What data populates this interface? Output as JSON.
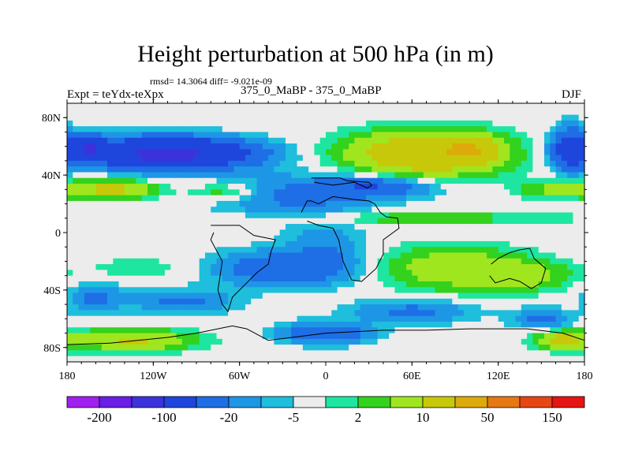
{
  "title": "Height perturbation at 500 hPa (in m)",
  "stats_text": "rmsd= 14.3064 diff= -9.021e-09",
  "left_label": "Expt = teYdx-teXpx",
  "center_label": "375_0_MaBP - 375_0_MaBP",
  "right_label": "DJF",
  "chart_data": {
    "type": "heatmap",
    "title": "Height perturbation at 500 hPa (in m)",
    "xlim": [
      -180,
      180
    ],
    "ylim": [
      -90,
      90
    ],
    "x_ticks": [
      {
        "value": -180,
        "label": "180"
      },
      {
        "value": -120,
        "label": "120W"
      },
      {
        "value": -60,
        "label": "60W"
      },
      {
        "value": 0,
        "label": "0"
      },
      {
        "value": 60,
        "label": "60E"
      },
      {
        "value": 120,
        "label": "120E"
      },
      {
        "value": 180,
        "label": "180"
      }
    ],
    "y_ticks": [
      {
        "value": 80,
        "label": "80N"
      },
      {
        "value": 40,
        "label": "40N"
      },
      {
        "value": 0,
        "label": "0"
      },
      {
        "value": -40,
        "label": "40S"
      },
      {
        "value": -80,
        "label": "80S"
      }
    ],
    "colorbar": {
      "colors": [
        "#a020f0",
        "#6a1ee6",
        "#3c32dc",
        "#1e46dc",
        "#1e6ee6",
        "#1e96e6",
        "#1ebedc",
        "#ececec",
        "#1ee6a0",
        "#32d21e",
        "#a0e61e",
        "#c8c80a",
        "#dcaa0a",
        "#e67814",
        "#e64614",
        "#e61414"
      ],
      "labels": [
        {
          "text": "-200",
          "boundary": 1
        },
        {
          "text": "-100",
          "boundary": 3
        },
        {
          "text": "-20",
          "boundary": 5
        },
        {
          "text": "-5",
          "boundary": 7
        },
        {
          "text": "2",
          "boundary": 9
        },
        {
          "text": "10",
          "boundary": 11
        },
        {
          "text": "50",
          "boundary": 13
        },
        {
          "text": "150",
          "boundary": 15
        }
      ]
    },
    "field_blobs": [
      {
        "lon": -110,
        "lat": 55,
        "sx": 55,
        "sy": 10,
        "amp": -60
      },
      {
        "lon": -165,
        "lat": 60,
        "sx": 10,
        "sy": 7,
        "amp": -40
      },
      {
        "lon": 70,
        "lat": 55,
        "sx": 50,
        "sy": 14,
        "amp": 40
      },
      {
        "lon": 100,
        "lat": 58,
        "sx": 16,
        "sy": 8,
        "amp": 35
      },
      {
        "lon": 170,
        "lat": 58,
        "sx": 12,
        "sy": 14,
        "amp": -30
      },
      {
        "lon": -150,
        "lat": 30,
        "sx": 28,
        "sy": 6,
        "amp": 25
      },
      {
        "lon": -70,
        "lat": 28,
        "sx": 25,
        "sy": 6,
        "amp": 10
      },
      {
        "lon": 160,
        "lat": 30,
        "sx": 25,
        "sy": 6,
        "amp": 12
      },
      {
        "lon": 60,
        "lat": 10,
        "sx": 100,
        "sy": 5,
        "amp": 8
      },
      {
        "lon": -20,
        "lat": 25,
        "sx": 55,
        "sy": 15,
        "amp": -12
      },
      {
        "lon": 35,
        "lat": 32,
        "sx": 38,
        "sy": 7,
        "amp": -18
      },
      {
        "lon": -30,
        "lat": -25,
        "sx": 45,
        "sy": 12,
        "amp": -18
      },
      {
        "lon": 0,
        "lat": -10,
        "sx": 25,
        "sy": 18,
        "amp": -8
      },
      {
        "lon": -130,
        "lat": -25,
        "sx": 35,
        "sy": 8,
        "amp": 4
      },
      {
        "lon": -160,
        "lat": -45,
        "sx": 18,
        "sy": 10,
        "amp": -12
      },
      {
        "lon": -100,
        "lat": -48,
        "sx": 35,
        "sy": 8,
        "amp": -12
      },
      {
        "lon": 90,
        "lat": -25,
        "sx": 45,
        "sy": 14,
        "amp": 18
      },
      {
        "lon": 140,
        "lat": -30,
        "sx": 30,
        "sy": 10,
        "amp": 12
      },
      {
        "lon": 60,
        "lat": -55,
        "sx": 40,
        "sy": 8,
        "amp": -12
      },
      {
        "lon": 150,
        "lat": -60,
        "sx": 20,
        "sy": 7,
        "amp": -12
      },
      {
        "lon": -135,
        "lat": -75,
        "sx": 40,
        "sy": 7,
        "amp": 22
      },
      {
        "lon": 165,
        "lat": -75,
        "sx": 18,
        "sy": 6,
        "amp": 25
      },
      {
        "lon": 0,
        "lat": -70,
        "sx": 30,
        "sy": 7,
        "amp": -20
      },
      {
        "lon": -20,
        "lat": 85,
        "sx": 25,
        "sy": 4,
        "amp": 1
      }
    ],
    "land_outlines": [
      [
        [
          -10,
          38
        ],
        [
          10,
          38
        ],
        [
          15,
          36
        ],
        [
          30,
          35
        ],
        [
          32,
          33
        ],
        [
          29,
          31
        ],
        [
          20,
          35
        ],
        [
          5,
          33
        ],
        [
          -8,
          35
        ]
      ],
      [
        [
          -17,
          14
        ],
        [
          -13,
          22
        ],
        [
          -10,
          22
        ],
        [
          -5,
          20
        ],
        [
          5,
          25
        ],
        [
          20,
          23
        ],
        [
          30,
          22
        ],
        [
          34,
          20
        ],
        [
          38,
          14
        ],
        [
          42,
          11
        ],
        [
          50,
          10
        ],
        [
          51,
          3
        ],
        [
          40,
          -5
        ],
        [
          40,
          -15
        ],
        [
          35,
          -25
        ],
        [
          25,
          -34
        ],
        [
          18,
          -33
        ],
        [
          12,
          -20
        ],
        [
          9,
          -5
        ],
        [
          5,
          3
        ],
        [
          -5,
          5
        ],
        [
          -13,
          8
        ]
      ],
      [
        [
          -80,
          5
        ],
        [
          -60,
          5
        ],
        [
          -50,
          -2
        ],
        [
          -35,
          -5
        ],
        [
          -38,
          -13
        ],
        [
          -40,
          -22
        ],
        [
          -48,
          -28
        ],
        [
          -55,
          -35
        ],
        [
          -65,
          -45
        ],
        [
          -68,
          -55
        ],
        [
          -72,
          -50
        ],
        [
          -75,
          -40
        ],
        [
          -72,
          -20
        ],
        [
          -80,
          -5
        ],
        [
          -78,
          0
        ]
      ],
      [
        [
          115,
          -22
        ],
        [
          120,
          -18
        ],
        [
          128,
          -14
        ],
        [
          135,
          -12
        ],
        [
          142,
          -11
        ],
        [
          145,
          -18
        ],
        [
          153,
          -25
        ],
        [
          150,
          -35
        ],
        [
          143,
          -39
        ],
        [
          135,
          -34
        ],
        [
          128,
          -32
        ],
        [
          118,
          -35
        ],
        [
          114,
          -30
        ]
      ],
      [
        [
          -180,
          -78
        ],
        [
          -150,
          -77
        ],
        [
          -110,
          -73
        ],
        [
          -90,
          -70
        ],
        [
          -65,
          -65
        ],
        [
          -55,
          -67
        ],
        [
          -40,
          -75
        ],
        [
          0,
          -70
        ],
        [
          40,
          -68
        ],
        [
          70,
          -68
        ],
        [
          100,
          -67
        ],
        [
          140,
          -67
        ],
        [
          165,
          -70
        ],
        [
          180,
          -75
        ]
      ]
    ]
  }
}
